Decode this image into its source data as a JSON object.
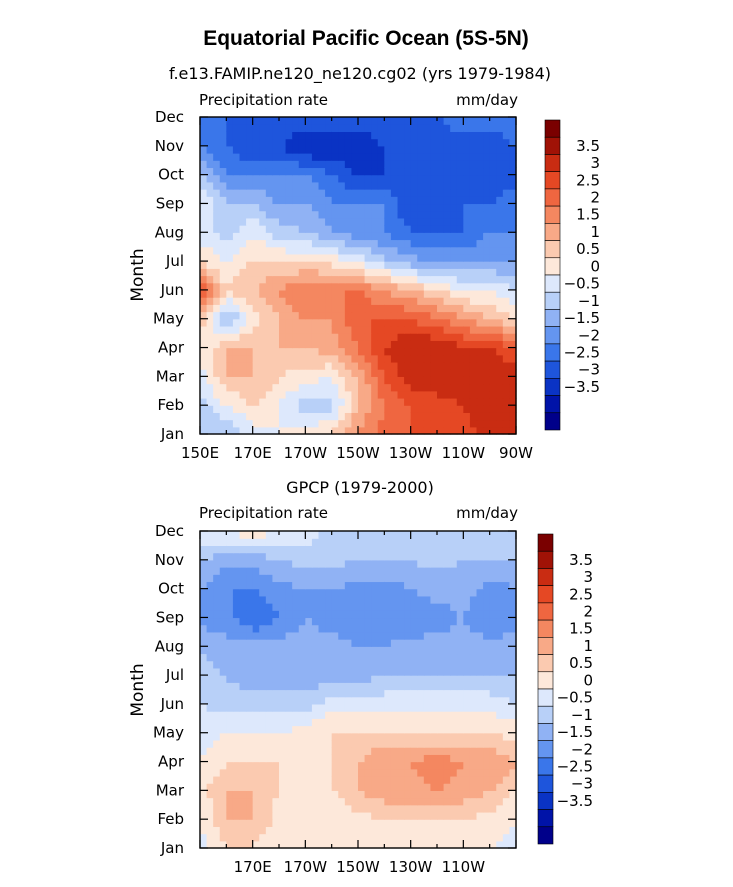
{
  "figure": {
    "title": "Equatorial Pacific Ocean (5S-5N)"
  },
  "colors": {
    "palette": [
      "#00008a",
      "#0013a8",
      "#0a33c4",
      "#1e55dc",
      "#3a76ea",
      "#6495f0",
      "#90b2f4",
      "#b8d0f8",
      "#dde8fc",
      "#fde8da",
      "#fbcab0",
      "#f8a987",
      "#f48760",
      "#ef6640",
      "#e54824",
      "#c92c12",
      "#a01206",
      "#7a0000"
    ]
  },
  "chart_data": [
    {
      "type": "heatmap",
      "id": "model",
      "subtitle": "f.e13.FAMIP.ne120_ne120.cg02 (yrs 1979-1984)",
      "left_label": "Precipitation rate",
      "right_label": "mm/day",
      "ylabel": "Month",
      "xlabel": "",
      "months": [
        "Jan",
        "Feb",
        "Mar",
        "Apr",
        "May",
        "Jun",
        "Jul",
        "Aug",
        "Sep",
        "Oct",
        "Nov",
        "Dec"
      ],
      "x_ticks": [
        "150E",
        "170E",
        "170W",
        "150W",
        "130W",
        "110W",
        "90W"
      ],
      "x_range": [
        150,
        270
      ],
      "levels": [
        -3.5,
        -3,
        -2.5,
        -2,
        -1.5,
        -1,
        -0.5,
        0,
        0.5,
        1,
        1.5,
        2,
        2.5,
        3,
        3.5
      ],
      "colorbar_labels": [
        "3.5",
        "3",
        "2.5",
        "2",
        "1.5",
        "1",
        "0.5",
        "0",
        "−0.5",
        "−1",
        "−1.5",
        "−2",
        "−2.5",
        "−3",
        "−3.5"
      ],
      "lon": [
        150,
        160,
        170,
        180,
        190,
        200,
        210,
        220,
        230,
        240,
        250,
        260,
        270
      ],
      "values": [
        [
          -0.3,
          -0.5,
          0.2,
          0.5,
          0.8,
          1.2,
          2.0,
          2.8,
          3.0,
          3.0,
          3.3,
          3.6,
          4.0
        ],
        [
          -0.3,
          0.5,
          1.0,
          0.5,
          -0.3,
          -0.3,
          1.5,
          2.5,
          3.0,
          3.3,
          3.5,
          4.0,
          4.0
        ],
        [
          0.3,
          1.5,
          1.5,
          1.0,
          0.8,
          0.5,
          1.5,
          3.0,
          3.8,
          3.8,
          4.0,
          4.0,
          4.0
        ],
        [
          0.5,
          1.5,
          1.5,
          1.5,
          1.5,
          1.8,
          2.5,
          3.5,
          4.0,
          4.0,
          3.5,
          3.5,
          3.0
        ],
        [
          1.5,
          -0.8,
          0.8,
          1.5,
          2.0,
          2.0,
          3.0,
          3.0,
          3.0,
          2.5,
          2.0,
          1.5,
          1.0
        ],
        [
          3.0,
          1.0,
          1.5,
          2.0,
          2.5,
          2.5,
          2.5,
          2.0,
          1.5,
          1.0,
          0.5,
          0.5,
          0.0
        ],
        [
          1.0,
          0.5,
          1.0,
          1.0,
          1.0,
          0.8,
          0.3,
          -0.3,
          -0.8,
          -1.2,
          -1.0,
          -1.0,
          -1.0
        ],
        [
          0.3,
          -0.3,
          0.5,
          -0.3,
          -0.5,
          -1.0,
          -1.3,
          -1.5,
          -2.0,
          -2.0,
          -2.0,
          -1.5,
          -1.5
        ],
        [
          0.5,
          -0.5,
          -0.5,
          -1.0,
          -1.0,
          -1.5,
          -1.5,
          -1.5,
          -2.5,
          -2.5,
          -2.0,
          -2.0,
          -1.5
        ],
        [
          -0.5,
          -1.5,
          -1.5,
          -1.5,
          -1.5,
          -2.0,
          -2.5,
          -2.5,
          -2.5,
          -2.0,
          -2.5,
          -2.5,
          -2.5
        ],
        [
          -1.5,
          -2.0,
          -2.5,
          -2.5,
          -3.0,
          -3.0,
          -3.0,
          -2.5,
          -2.5,
          -2.5,
          -2.5,
          -2.5,
          -2.0
        ],
        [
          -1.5,
          -2.0,
          -2.0,
          -2.0,
          -2.0,
          -2.0,
          -2.0,
          -2.0,
          -2.0,
          -2.0,
          -1.5,
          -1.5,
          -1.5
        ]
      ]
    },
    {
      "type": "heatmap",
      "id": "obs",
      "subtitle": "GPCP (1979-2000)",
      "left_label": "Precipitation rate",
      "right_label": "mm/day",
      "ylabel": "Month",
      "xlabel": "",
      "months": [
        "Jan",
        "Feb",
        "Mar",
        "Apr",
        "May",
        "Jun",
        "Jul",
        "Aug",
        "Sep",
        "Oct",
        "Nov",
        "Dec"
      ],
      "x_ticks": [
        "170E",
        "170W",
        "150W",
        "130W",
        "110W"
      ],
      "x_range": [
        150,
        270
      ],
      "levels": [
        -3.5,
        -3,
        -2.5,
        -2,
        -1.5,
        -1,
        -0.5,
        0,
        0.5,
        1,
        1.5,
        2,
        2.5,
        3,
        3.5
      ],
      "colorbar_labels": [
        "3.5",
        "3",
        "2.5",
        "2",
        "1.5",
        "1",
        "0.5",
        "0",
        "−0.5",
        "−1",
        "−1.5",
        "−2",
        "−2.5",
        "−3",
        "−3.5"
      ],
      "lon": [
        150,
        160,
        170,
        180,
        190,
        200,
        210,
        220,
        230,
        240,
        250,
        260,
        270
      ],
      "values": [
        [
          0.2,
          1.0,
          1.0,
          0.5,
          0.5,
          0.5,
          0.5,
          0.5,
          0.5,
          0.5,
          0.5,
          0.5,
          0.3
        ],
        [
          0.5,
          1.5,
          1.5,
          0.8,
          0.5,
          0.5,
          0.8,
          1.0,
          1.0,
          1.0,
          1.0,
          0.8,
          0.5
        ],
        [
          0.8,
          1.5,
          1.5,
          1.0,
          0.8,
          1.0,
          1.5,
          1.8,
          1.8,
          2.0,
          1.8,
          1.5,
          1.0
        ],
        [
          0.5,
          1.0,
          1.0,
          1.0,
          1.0,
          1.0,
          1.5,
          2.0,
          2.0,
          2.3,
          2.0,
          2.0,
          1.5
        ],
        [
          0.3,
          0.5,
          0.5,
          0.5,
          0.8,
          1.0,
          1.0,
          1.0,
          1.0,
          1.0,
          1.0,
          1.0,
          0.8
        ],
        [
          0.0,
          -0.3,
          -0.3,
          -0.3,
          -0.3,
          0.3,
          0.3,
          0.3,
          0.3,
          0.3,
          0.3,
          0.3,
          0.0
        ],
        [
          -0.3,
          -0.5,
          -0.8,
          -0.8,
          -0.8,
          -0.8,
          -0.8,
          -0.5,
          -0.5,
          -0.5,
          -0.5,
          -0.5,
          -0.5
        ],
        [
          -0.5,
          -0.8,
          -0.8,
          -0.8,
          -0.8,
          -0.8,
          -1.0,
          -1.0,
          -0.8,
          -0.8,
          -0.8,
          -0.8,
          -0.8
        ],
        [
          -1.2,
          -1.3,
          -2.0,
          -1.5,
          -1.0,
          -1.2,
          -1.5,
          -1.5,
          -1.5,
          -1.2,
          -1.0,
          -1.5,
          -1.2
        ],
        [
          -1.0,
          -1.5,
          -1.5,
          -1.2,
          -1.0,
          -1.0,
          -1.2,
          -1.2,
          -1.0,
          -0.8,
          -0.8,
          -1.2,
          -1.0
        ],
        [
          -0.5,
          -0.8,
          -0.8,
          -0.5,
          -0.3,
          -0.3,
          -0.5,
          -0.5,
          -0.5,
          -0.3,
          -0.5,
          -0.5,
          -0.5
        ],
        [
          0.3,
          0.5,
          0.8,
          0.5,
          0.3,
          -0.3,
          -0.3,
          -0.3,
          -0.3,
          -0.3,
          -0.3,
          -0.3,
          -0.3
        ]
      ]
    }
  ]
}
